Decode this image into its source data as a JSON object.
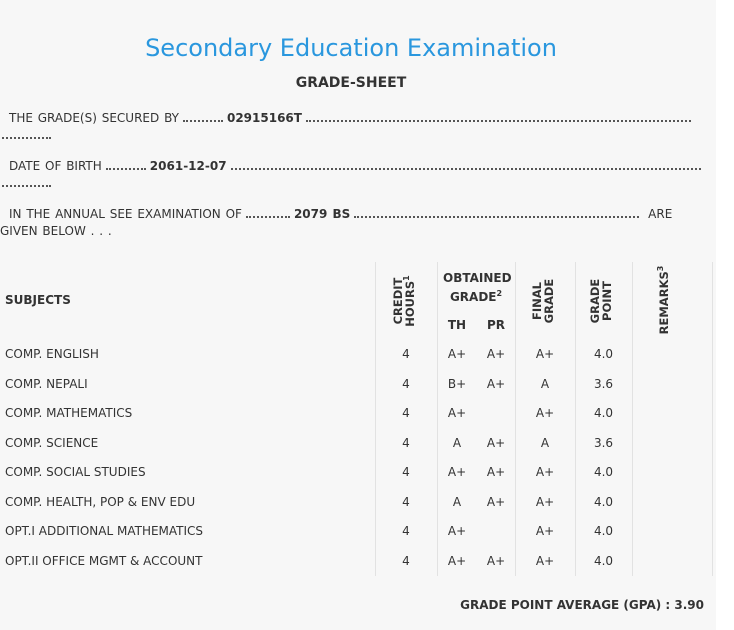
{
  "header": {
    "title": "Secondary Education Examination",
    "subtitle": "GRADE-SHEET"
  },
  "info": [
    {
      "label": "THE GRADE(S) SECURED BY",
      "value": "02915166T"
    },
    {
      "label": "DATE OF BIRTH",
      "value": "2061-12-07"
    },
    {
      "label": "IN THE ANNUAL SEE EXAMINATION OF",
      "value": "2079 BS",
      "suffix": "ARE GIVEN BELOW . . ."
    }
  ],
  "table": {
    "columns": {
      "subjects": "SUBJECTS",
      "credit_hours": {
        "text": "CREDIT HOURS",
        "note": "1"
      },
      "obtained_grade": {
        "text": "OBTAINED GRADE",
        "note": "2"
      },
      "th": "TH",
      "pr": "PR",
      "final_grade": "FINAL GRADE",
      "grade_point": "GRADE POINT",
      "remarks": {
        "text": "REMARKS",
        "note": "3"
      }
    },
    "rows": [
      [
        "COMP. ENGLISH",
        "4",
        "A+",
        "A+",
        "A+",
        "4.0"
      ],
      [
        "COMP. NEPALI",
        "4",
        "B+",
        "A+",
        "A",
        "3.6"
      ],
      [
        "COMP. MATHEMATICS",
        "4",
        "A+",
        null,
        "A+",
        "4.0"
      ],
      [
        "COMP. SCIENCE",
        "4",
        "A",
        "A+",
        "A",
        "3.6"
      ],
      [
        "COMP. SOCIAL STUDIES",
        "4",
        "A+",
        "A+",
        "A+",
        "4.0"
      ],
      [
        "COMP. HEALTH, POP & ENV EDU",
        "4",
        "A",
        "A+",
        "A+",
        "4.0"
      ],
      [
        "OPT.I ADDITIONAL MATHEMATICS",
        "4",
        "A+",
        null,
        "A+",
        "4.0"
      ],
      [
        "OPT.II OFFICE MGMT & ACCOUNT",
        "4",
        "A+",
        "A+",
        "A+",
        "4.0"
      ]
    ]
  },
  "gpa": {
    "label": "GRADE POINT AVERAGE (GPA) :",
    "value": "3.90"
  }
}
